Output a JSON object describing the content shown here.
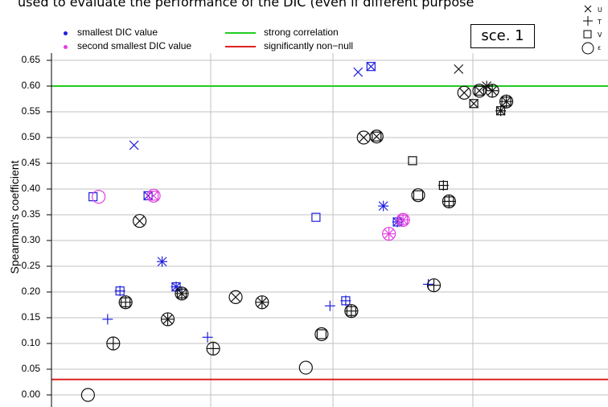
{
  "caption": "used to evaluate the performance of the DIC (even if different purpose",
  "scenario_label": "sce. 1",
  "legend": {
    "smallest": "smallest DIC value",
    "second": "second smallest DIC value",
    "strong": "strong correlation",
    "nonnull": "significantly non−null"
  },
  "symbol_key": [
    "U",
    "T",
    "V",
    "ε"
  ],
  "colors": {
    "blue": "#1f1fe0",
    "magenta": "#e040e0",
    "black": "#111111",
    "green": "#22cc22",
    "red": "#dd2222",
    "grid": "#c0c0c0"
  },
  "chart_data": {
    "type": "scatter",
    "ylabel": "Spearman's coefficient",
    "ylim": [
      -0.02,
      0.66
    ],
    "yticks": [
      "0.00",
      "0.05",
      "0.10",
      "0.15",
      "0.20",
      "0.25",
      "0.30",
      "0.35",
      "0.40",
      "0.45",
      "0.50",
      "0.55",
      "0.60",
      "0.65"
    ],
    "grid": true,
    "reference_lines": [
      {
        "name": "strong correlation",
        "y": 0.6,
        "color": "green"
      },
      {
        "name": "significantly non−null",
        "y": 0.03,
        "color": "red"
      }
    ],
    "points": [
      {
        "x": 1.05,
        "y": 0.0,
        "marker": "e",
        "color": "black"
      },
      {
        "x": 1.14,
        "y": 0.385,
        "marker": "V",
        "color": "blue"
      },
      {
        "x": 1.24,
        "y": 0.385,
        "marker": "e",
        "color": "magenta"
      },
      {
        "x": 1.4,
        "y": 0.147,
        "marker": "T",
        "color": "blue"
      },
      {
        "x": 1.5,
        "y": 0.1,
        "marker": "Te",
        "color": "black"
      },
      {
        "x": 1.62,
        "y": 0.202,
        "marker": "VT",
        "color": "blue"
      },
      {
        "x": 1.72,
        "y": 0.18,
        "marker": "VTe",
        "color": "black"
      },
      {
        "x": 1.87,
        "y": 0.485,
        "marker": "U",
        "color": "blue"
      },
      {
        "x": 1.97,
        "y": 0.338,
        "marker": "Ue",
        "color": "black"
      },
      {
        "x": 2.12,
        "y": 0.387,
        "marker": "UV",
        "color": "blue"
      },
      {
        "x": 2.22,
        "y": 0.387,
        "marker": "UVe",
        "color": "magenta"
      },
      {
        "x": 2.37,
        "y": 0.259,
        "marker": "UT",
        "color": "blue"
      },
      {
        "x": 2.47,
        "y": 0.147,
        "marker": "UTe",
        "color": "black"
      },
      {
        "x": 2.62,
        "y": 0.21,
        "marker": "UVT",
        "color": "blue"
      },
      {
        "x": 2.72,
        "y": 0.197,
        "marker": "UVTe",
        "color": "black"
      },
      {
        "x": 3.18,
        "y": 0.112,
        "marker": "T",
        "color": "blue"
      },
      {
        "x": 3.28,
        "y": 0.09,
        "marker": "Te",
        "color": "black"
      },
      {
        "x": 3.68,
        "y": 0.19,
        "marker": "Ue",
        "color": "black"
      },
      {
        "x": 4.15,
        "y": 0.18,
        "marker": "UTe",
        "color": "black"
      },
      {
        "x": 4.93,
        "y": 0.053,
        "marker": "e",
        "color": "black"
      },
      {
        "x": 5.11,
        "y": 0.345,
        "marker": "V",
        "color": "blue"
      },
      {
        "x": 5.21,
        "y": 0.118,
        "marker": "Ve",
        "color": "black"
      },
      {
        "x": 5.36,
        "y": 0.173,
        "marker": "T",
        "color": "blue"
      },
      {
        "x": 5.64,
        "y": 0.183,
        "marker": "VT",
        "color": "blue"
      },
      {
        "x": 5.74,
        "y": 0.163,
        "marker": "VTe",
        "color": "black"
      },
      {
        "x": 5.86,
        "y": 0.627,
        "marker": "U",
        "color": "blue"
      },
      {
        "x": 5.96,
        "y": 0.5,
        "marker": "Ue",
        "color": "black"
      },
      {
        "x": 6.09,
        "y": 0.638,
        "marker": "UV",
        "color": "blue"
      },
      {
        "x": 6.19,
        "y": 0.502,
        "marker": "UVe",
        "color": "black"
      },
      {
        "x": 6.31,
        "y": 0.367,
        "marker": "UT",
        "color": "blue"
      },
      {
        "x": 6.41,
        "y": 0.313,
        "marker": "UTe",
        "color": "magenta"
      },
      {
        "x": 6.56,
        "y": 0.336,
        "marker": "UVT",
        "color": "blue"
      },
      {
        "x": 6.66,
        "y": 0.34,
        "marker": "UVTe",
        "color": "magenta"
      },
      {
        "x": 6.83,
        "y": 0.455,
        "marker": "V",
        "color": "black"
      },
      {
        "x": 6.93,
        "y": 0.388,
        "marker": "Ve",
        "color": "black"
      },
      {
        "x": 7.11,
        "y": 0.215,
        "marker": "T",
        "color": "blue"
      },
      {
        "x": 7.21,
        "y": 0.213,
        "marker": "Te",
        "color": "black"
      },
      {
        "x": 7.38,
        "y": 0.407,
        "marker": "VT",
        "color": "black"
      },
      {
        "x": 7.48,
        "y": 0.376,
        "marker": "VTe",
        "color": "black"
      },
      {
        "x": 7.65,
        "y": 0.633,
        "marker": "U",
        "color": "black"
      },
      {
        "x": 7.75,
        "y": 0.587,
        "marker": "Ue",
        "color": "black"
      },
      {
        "x": 7.92,
        "y": 0.566,
        "marker": "UV",
        "color": "black"
      },
      {
        "x": 8.02,
        "y": 0.591,
        "marker": "UVe",
        "color": "black"
      },
      {
        "x": 8.15,
        "y": 0.6,
        "marker": "UT",
        "color": "black"
      },
      {
        "x": 8.25,
        "y": 0.591,
        "marker": "UTe",
        "color": "black"
      },
      {
        "x": 8.4,
        "y": 0.552,
        "marker": "UVT",
        "color": "black"
      },
      {
        "x": 8.5,
        "y": 0.57,
        "marker": "UVTe",
        "color": "black"
      }
    ]
  }
}
